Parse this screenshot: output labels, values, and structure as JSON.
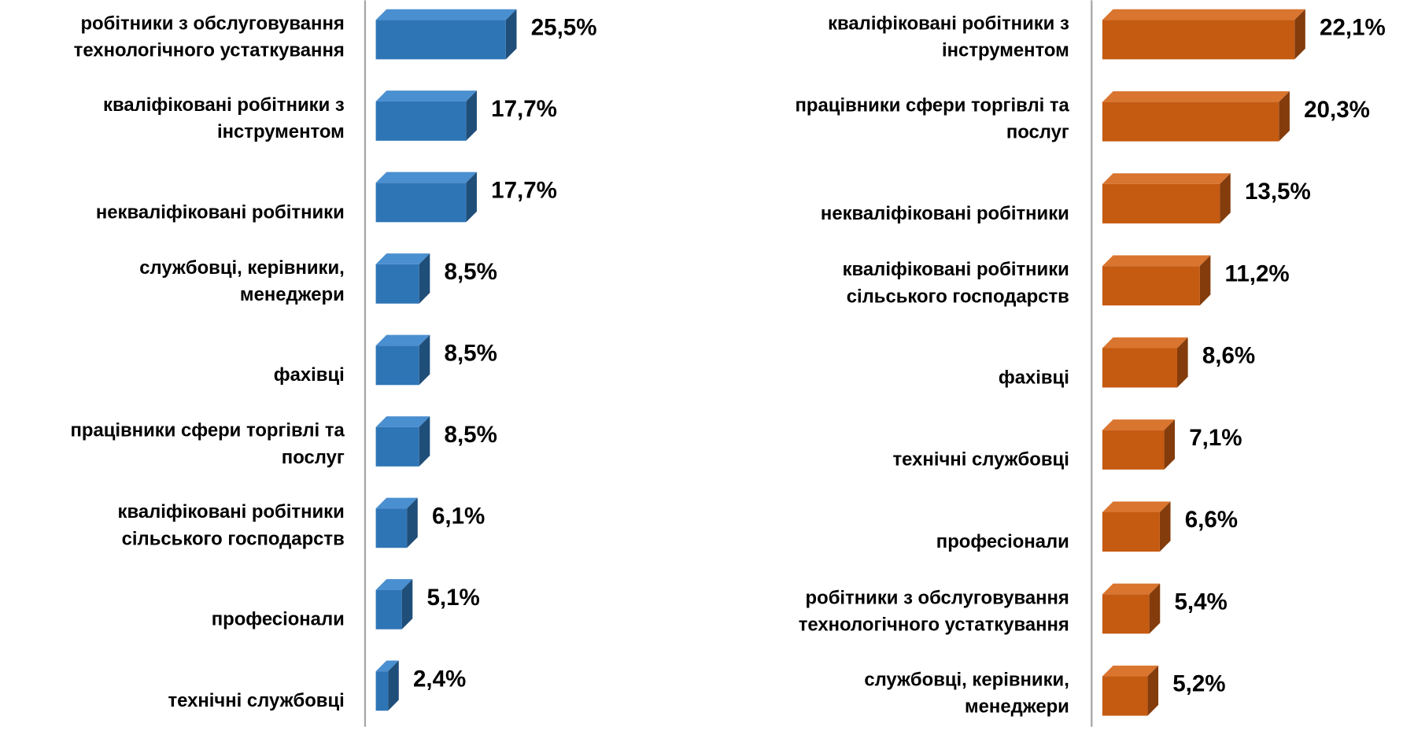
{
  "chart_data": [
    {
      "type": "bar3d-horizontal",
      "color": "#2e75b6",
      "side_color": "#1f4e79",
      "top_color": "#4a8fd0",
      "xlim": [
        0,
        30
      ],
      "categories": [
        [
          "робітники з обслуговування",
          "технологічного устаткування"
        ],
        [
          "кваліфіковані робітники з",
          "інструментом"
        ],
        [
          "некваліфіковані робітники"
        ],
        [
          "службовці, керівники,",
          "менеджери"
        ],
        [
          "фахівці"
        ],
        [
          "працівники сфери торгівлі та",
          "послуг"
        ],
        [
          "кваліфіковані робітники",
          "сільського господарств"
        ],
        [
          "професіонали"
        ],
        [
          "технічні службовці"
        ]
      ],
      "values": [
        25.5,
        17.7,
        17.7,
        8.5,
        8.5,
        8.5,
        6.1,
        5.1,
        2.4
      ],
      "value_labels": [
        "25,5%",
        "17,7%",
        "17,7%",
        "8,5%",
        "8,5%",
        "8,5%",
        "6,1%",
        "5,1%",
        "2,4%"
      ]
    },
    {
      "type": "bar3d-horizontal",
      "color": "#c55a11",
      "side_color": "#843c0c",
      "top_color": "#d9752f",
      "xlim": [
        0,
        25
      ],
      "categories": [
        [
          "кваліфіковані робітники з",
          "інструментом"
        ],
        [
          "працівники сфери торгівлі та",
          "послуг"
        ],
        [
          "некваліфіковані робітники"
        ],
        [
          "кваліфіковані робітники",
          "сільського господарств"
        ],
        [
          "фахівці"
        ],
        [
          "технічні службовці"
        ],
        [
          "професіонали"
        ],
        [
          "робітники з обслуговування",
          "технологічного устаткування"
        ],
        [
          "службовці, керівники,",
          "менеджери"
        ]
      ],
      "values": [
        22.1,
        20.3,
        13.5,
        11.2,
        8.6,
        7.1,
        6.6,
        5.4,
        5.2
      ],
      "value_labels": [
        "22,1%",
        "20,3%",
        "13,5%",
        "11,2%",
        "8,6%",
        "7,1%",
        "6,6%",
        "5,4%",
        "5,2%"
      ]
    }
  ]
}
